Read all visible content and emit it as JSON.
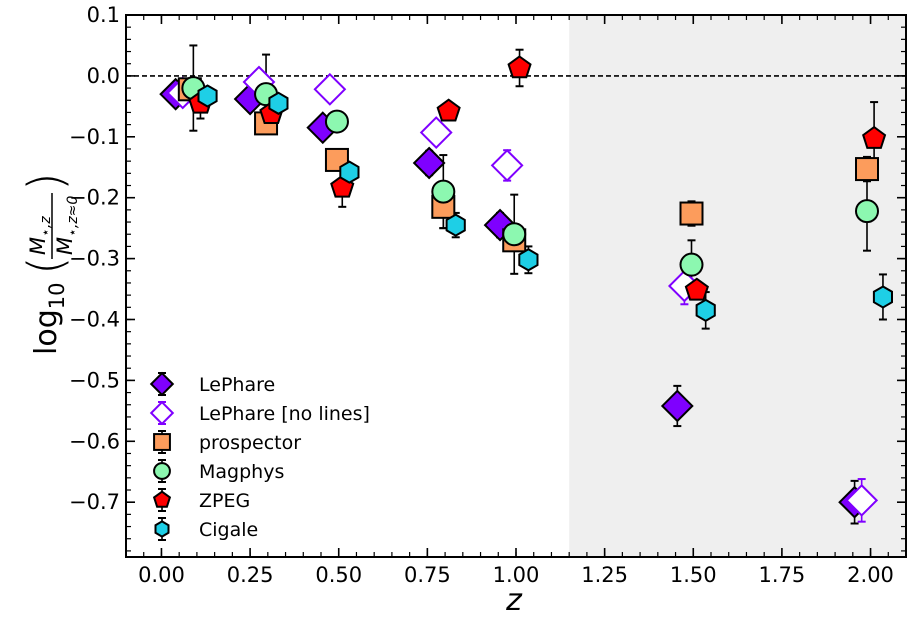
{
  "chart_data": {
    "type": "scatter",
    "title": "",
    "xlabel": "z",
    "ylabel": {
      "prefix": "log",
      "sub": "10",
      "num_main": "M",
      "num_sub": "⋆,z",
      "den_main": "M",
      "den_sub": "⋆,z≈0"
    },
    "xlim": [
      -0.1,
      2.1
    ],
    "ylim": [
      -0.79,
      0.1
    ],
    "xticks": [
      0.0,
      0.25,
      0.5,
      0.75,
      1.0,
      1.25,
      1.5,
      1.75,
      2.0
    ],
    "xtick_labels": [
      "0.00",
      "0.25",
      "0.50",
      "0.75",
      "1.00",
      "1.25",
      "1.50",
      "1.75",
      "2.00"
    ],
    "yticks": [
      0.1,
      0.0,
      -0.1,
      -0.2,
      -0.3,
      -0.4,
      -0.5,
      -0.6,
      -0.7
    ],
    "ytick_labels": [
      "0.1",
      "0.0",
      "−0.1",
      "−0.2",
      "−0.3",
      "−0.4",
      "−0.5",
      "−0.6",
      "−0.7"
    ],
    "reference_line": {
      "y": 0.0,
      "style": "dashed"
    },
    "shaded_region": {
      "x_start": 1.15,
      "x_end": 2.1,
      "color": "#efefef"
    },
    "legend_position": "lower-left",
    "series": [
      {
        "name": "LePhare",
        "marker": "diamond",
        "fill": "#7f00ff",
        "stroke": "#000000",
        "points": [
          {
            "x": 0.04,
            "y": -0.03,
            "err": 0.01
          },
          {
            "x": 0.25,
            "y": -0.038,
            "err": 0.01
          },
          {
            "x": 0.455,
            "y": -0.085,
            "err": 0.01
          },
          {
            "x": 0.755,
            "y": -0.143,
            "err": 0.02
          },
          {
            "x": 0.955,
            "y": -0.245,
            "err": 0.02
          },
          {
            "x": 1.455,
            "y": -0.542,
            "err": 0.033
          },
          {
            "x": 1.955,
            "y": -0.7,
            "err": 0.035
          }
        ]
      },
      {
        "name": "LePhare [no lines]",
        "marker": "diamond-open",
        "fill": "#ffffff",
        "stroke": "#7f00ff",
        "points": [
          {
            "x": 0.06,
            "y": -0.028,
            "err": 0.0
          },
          {
            "x": 0.275,
            "y": -0.01,
            "err": 0.0
          },
          {
            "x": 0.475,
            "y": -0.022,
            "err": 0.0
          },
          {
            "x": 0.775,
            "y": -0.093,
            "err": 0.01
          },
          {
            "x": 0.975,
            "y": -0.147,
            "err": 0.025
          },
          {
            "x": 1.475,
            "y": -0.345,
            "err": 0.03
          },
          {
            "x": 1.975,
            "y": -0.697,
            "err": 0.035
          }
        ]
      },
      {
        "name": "prospector",
        "marker": "square",
        "fill": "#fc9c5c",
        "stroke": "#000000",
        "points": [
          {
            "x": 0.08,
            "y": -0.022,
            "err": 0.0
          },
          {
            "x": 0.295,
            "y": -0.078,
            "err": 0.0
          },
          {
            "x": 0.495,
            "y": -0.138,
            "err": 0.0
          },
          {
            "x": 0.795,
            "y": -0.215,
            "err": 0.035
          },
          {
            "x": 0.995,
            "y": -0.27,
            "err": 0.0
          },
          {
            "x": 1.495,
            "y": -0.226,
            "err": 0.02
          },
          {
            "x": 1.99,
            "y": -0.153,
            "err": 0.02
          }
        ]
      },
      {
        "name": "Magphys",
        "marker": "circle",
        "fill": "#8cf8b0",
        "stroke": "#000000",
        "points": [
          {
            "x": 0.09,
            "y": -0.02,
            "err": 0.07
          },
          {
            "x": 0.295,
            "y": -0.03,
            "err": 0.065
          },
          {
            "x": 0.495,
            "y": -0.075,
            "err": 0.0
          },
          {
            "x": 0.795,
            "y": -0.19,
            "err": 0.06
          },
          {
            "x": 0.995,
            "y": -0.26,
            "err": 0.065
          },
          {
            "x": 1.495,
            "y": -0.31,
            "err": 0.04
          },
          {
            "x": 1.99,
            "y": -0.222,
            "err": 0.065
          }
        ]
      },
      {
        "name": "ZPEG",
        "marker": "pentagon",
        "fill": "#ff0000",
        "stroke": "#000000",
        "points": [
          {
            "x": 0.11,
            "y": -0.045,
            "err": 0.025
          },
          {
            "x": 0.31,
            "y": -0.062,
            "err": 0.0
          },
          {
            "x": 0.51,
            "y": -0.183,
            "err": 0.032
          },
          {
            "x": 0.81,
            "y": -0.058,
            "err": 0.0
          },
          {
            "x": 1.01,
            "y": 0.013,
            "err": 0.03
          },
          {
            "x": 1.51,
            "y": -0.352,
            "err": 0.0
          },
          {
            "x": 2.01,
            "y": -0.103,
            "err": 0.06
          }
        ]
      },
      {
        "name": "Cigale",
        "marker": "hexagon",
        "fill": "#1ecfe6",
        "stroke": "#000000",
        "points": [
          {
            "x": 0.13,
            "y": -0.033,
            "err": 0.0
          },
          {
            "x": 0.33,
            "y": -0.045,
            "err": 0.0
          },
          {
            "x": 0.53,
            "y": -0.158,
            "err": 0.0
          },
          {
            "x": 0.83,
            "y": -0.245,
            "err": 0.02
          },
          {
            "x": 1.035,
            "y": -0.302,
            "err": 0.022
          },
          {
            "x": 1.535,
            "y": -0.385,
            "err": 0.03
          },
          {
            "x": 2.035,
            "y": -0.363,
            "err": 0.037
          }
        ]
      }
    ]
  }
}
